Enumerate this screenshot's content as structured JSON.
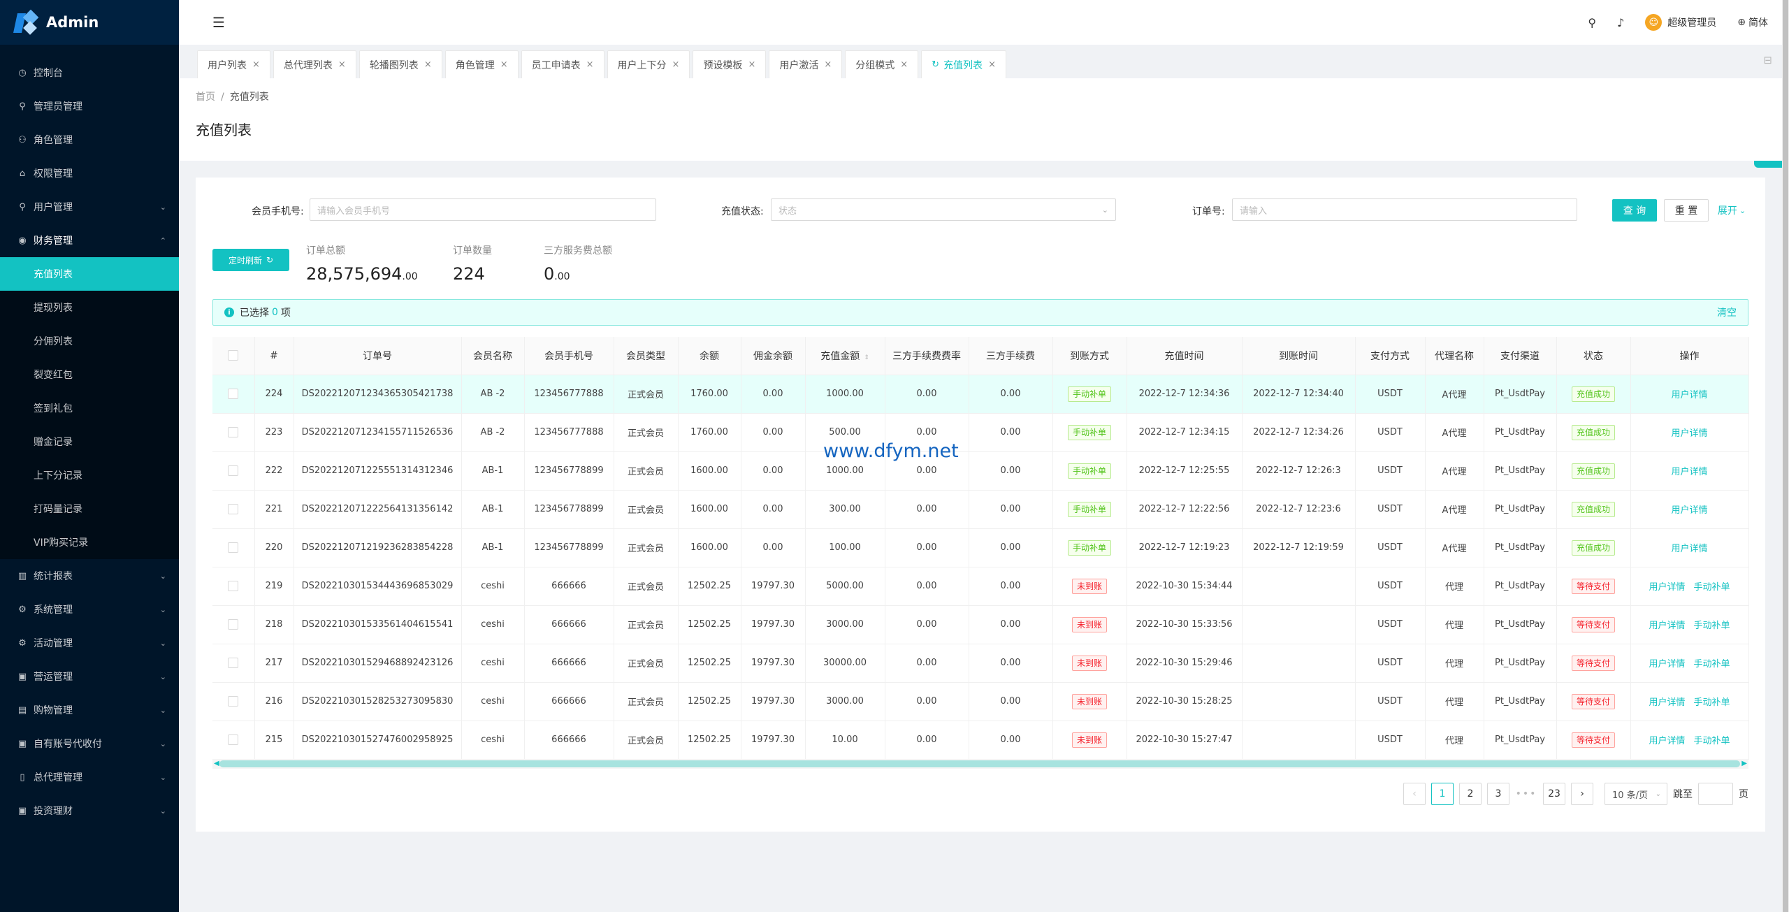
{
  "app": {
    "title": "Admin"
  },
  "sidebar": {
    "items_top": [
      {
        "label": "控制台",
        "icon": "dashboard-icon",
        "glyph": "◷"
      },
      {
        "label": "管理员管理",
        "icon": "user-icon",
        "glyph": "⚲"
      },
      {
        "label": "角色管理",
        "icon": "team-icon",
        "glyph": "⚇"
      },
      {
        "label": "权限管理",
        "icon": "bank-icon",
        "glyph": "⌂"
      },
      {
        "label": "用户管理",
        "icon": "user-icon",
        "glyph": "⚲",
        "arrow": "⌄"
      },
      {
        "label": "财务管理",
        "icon": "money-icon",
        "glyph": "◉",
        "arrow": "⌃"
      }
    ],
    "sub_items": [
      "充值列表",
      "提现列表",
      "分佣列表",
      "裂变红包",
      "签到礼包",
      "赠金记录",
      "上下分记录",
      "打码量记录",
      "VIP购买记录"
    ],
    "items_bottom": [
      {
        "label": "统计报表",
        "icon": "chart-icon",
        "glyph": "▥",
        "arrow": "⌄"
      },
      {
        "label": "系统管理",
        "icon": "setting-icon",
        "glyph": "⚙",
        "arrow": "⌄"
      },
      {
        "label": "活动管理",
        "icon": "setting-icon",
        "glyph": "⚙",
        "arrow": "⌄"
      },
      {
        "label": "营运管理",
        "icon": "calendar-icon",
        "glyph": "▣",
        "arrow": "⌄"
      },
      {
        "label": "购物管理",
        "icon": "shop-icon",
        "glyph": "▤",
        "arrow": "⌄"
      },
      {
        "label": "自有账号代收付",
        "icon": "calendar-icon",
        "glyph": "▣",
        "arrow": "⌄"
      },
      {
        "label": "总代理管理",
        "icon": "file-icon",
        "glyph": "▯",
        "arrow": "⌄"
      },
      {
        "label": "投资理财",
        "icon": "wallet-icon",
        "glyph": "▣",
        "arrow": "⌄"
      }
    ]
  },
  "header": {
    "fold_glyph": "☰",
    "search_glyph": "⚲",
    "bell_glyph": "♪",
    "user_name": "超级管理员",
    "lang": "简体",
    "lang_glyph": "⊕",
    "avatar_glyph": "☺"
  },
  "tabs": [
    {
      "label": "用户列表"
    },
    {
      "label": "总代理列表"
    },
    {
      "label": "轮播图列表"
    },
    {
      "label": "角色管理"
    },
    {
      "label": "员工申请表"
    },
    {
      "label": "用户上下分"
    },
    {
      "label": "预设模板"
    },
    {
      "label": "用户激活"
    },
    {
      "label": "分组模式"
    },
    {
      "label": "充值列表",
      "active": true
    }
  ],
  "tab_close": "×",
  "tab_refresh": "↻",
  "lock_glyph": "⊟",
  "breadcrumb": {
    "home": "首页",
    "sep": "/",
    "current": "充值列表"
  },
  "page_title": "充值列表",
  "search": {
    "phone_label": "会员手机号:",
    "phone_placeholder": "请输入会员手机号",
    "status_label": "充值状态:",
    "status_placeholder": "状态",
    "order_label": "订单号:",
    "order_placeholder": "请输入",
    "query": "查 询",
    "reset": "重 置",
    "expand": "展开",
    "chev": "⌄"
  },
  "stats": {
    "refresh_label": "定时刷新",
    "refresh_glyph": "↻",
    "total_label": "订单总额",
    "total_int": "28,575,694",
    "total_dec": ".00",
    "count_label": "订单数量",
    "count_value": "224",
    "fee_label": "三方服务费总额",
    "fee_int": "0",
    "fee_dec": ".00"
  },
  "alert": {
    "selected_prefix": "已选择",
    "selected_count": "0",
    "selected_suffix": "项",
    "clear": "清空",
    "info_glyph": "i"
  },
  "table": {
    "columns": [
      "#",
      "订单号",
      "会员名称",
      "会员手机号",
      "会员类型",
      "余额",
      "佣金余额",
      "充值金额",
      "三方手续费费率",
      "三方手续费",
      "到账方式",
      "充值时间",
      "到账时间",
      "支付方式",
      "代理名称",
      "支付渠道",
      "状态",
      "操作"
    ],
    "sort_glyph": "⇕",
    "rows": [
      {
        "id": "224",
        "order": "DS20221207123436530542173​8",
        "name": "AB -2",
        "phone": "123456777888",
        "type": "正式会员",
        "balance": "1760.00",
        "comm": "0.00",
        "amount": "1000.00",
        "rate": "0.00",
        "fee": "0.00",
        "method": "手动补单",
        "method_color": "green",
        "time": "2022-12-7 12:34:36",
        "arrive": "2022-12-7 12:34:40",
        "pay": "USDT",
        "agent": "A代理",
        "channel": "Pt_UsdtPay",
        "status": "充值成功",
        "status_color": "green",
        "op1": "用户详情",
        "op2": ""
      },
      {
        "id": "223",
        "order": "DS20221207123415571152653​6",
        "name": "AB -2",
        "phone": "123456777888",
        "type": "正式会员",
        "balance": "1760.00",
        "comm": "0.00",
        "amount": "500.00",
        "rate": "0.00",
        "fee": "0.00",
        "method": "手动补单",
        "method_color": "green",
        "time": "2022-12-7 12:34:15",
        "arrive": "2022-12-7 12:34:26",
        "pay": "USDT",
        "agent": "A代理",
        "channel": "Pt_UsdtPay",
        "status": "充值成功",
        "status_color": "green",
        "op1": "用户详情",
        "op2": ""
      },
      {
        "id": "222",
        "order": "DS20221207122555131431234​6",
        "name": "AB-1",
        "phone": "123456778899",
        "type": "正式会员",
        "balance": "1600.00",
        "comm": "0.00",
        "amount": "1000.00",
        "rate": "0.00",
        "fee": "0.00",
        "method": "手动补单",
        "method_color": "green",
        "time": "2022-12-7 12:25:55",
        "arrive": "2022-12-7 12:26:3",
        "pay": "USDT",
        "agent": "A代理",
        "channel": "Pt_UsdtPay",
        "status": "充值成功",
        "status_color": "green",
        "op1": "用户详情",
        "op2": ""
      },
      {
        "id": "221",
        "order": "DS20221207122256413135614​2",
        "name": "AB-1",
        "phone": "123456778899",
        "type": "正式会员",
        "balance": "1600.00",
        "comm": "0.00",
        "amount": "300.00",
        "rate": "0.00",
        "fee": "0.00",
        "method": "手动补单",
        "method_color": "green",
        "time": "2022-12-7 12:22:56",
        "arrive": "2022-12-7 12:23:6",
        "pay": "USDT",
        "agent": "A代理",
        "channel": "Pt_UsdtPay",
        "status": "充值成功",
        "status_color": "green",
        "op1": "用户详情",
        "op2": ""
      },
      {
        "id": "220",
        "order": "DS20221207121923628385422​8",
        "name": "AB-1",
        "phone": "123456778899",
        "type": "正式会员",
        "balance": "1600.00",
        "comm": "0.00",
        "amount": "100.00",
        "rate": "0.00",
        "fee": "0.00",
        "method": "手动补单",
        "method_color": "green",
        "time": "2022-12-7 12:19:23",
        "arrive": "2022-12-7 12:19:59",
        "pay": "USDT",
        "agent": "A代理",
        "channel": "Pt_UsdtPay",
        "status": "充值成功",
        "status_color": "green",
        "op1": "用户详情",
        "op2": ""
      },
      {
        "id": "219",
        "order": "DS20221030153444369685302​9",
        "name": "ceshi",
        "phone": "666666",
        "type": "正式会员",
        "balance": "12502.25",
        "comm": "19797.30",
        "amount": "5000.00",
        "rate": "0.00",
        "fee": "0.00",
        "method": "未到账",
        "method_color": "red",
        "time": "2022-10-30 15:34:44",
        "arrive": "",
        "pay": "USDT",
        "agent": "代理",
        "channel": "Pt_UsdtPay",
        "status": "等待支付",
        "status_color": "red",
        "op1": "用户详情",
        "op2": "手动补单"
      },
      {
        "id": "218",
        "order": "DS20221030153356140461554​1",
        "name": "ceshi",
        "phone": "666666",
        "type": "正式会员",
        "balance": "12502.25",
        "comm": "19797.30",
        "amount": "3000.00",
        "rate": "0.00",
        "fee": "0.00",
        "method": "未到账",
        "method_color": "red",
        "time": "2022-10-30 15:33:56",
        "arrive": "",
        "pay": "USDT",
        "agent": "代理",
        "channel": "Pt_UsdtPay",
        "status": "等待支付",
        "status_color": "red",
        "op1": "用户详情",
        "op2": "手动补单"
      },
      {
        "id": "217",
        "order": "DS20221030152946889242312​6",
        "name": "ceshi",
        "phone": "666666",
        "type": "正式会员",
        "balance": "12502.25",
        "comm": "19797.30",
        "amount": "30000.00",
        "rate": "0.00",
        "fee": "0.00",
        "method": "未到账",
        "method_color": "red",
        "time": "2022-10-30 15:29:46",
        "arrive": "",
        "pay": "USDT",
        "agent": "代理",
        "channel": "Pt_UsdtPay",
        "status": "等待支付",
        "status_color": "red",
        "op1": "用户详情",
        "op2": "手动补单"
      },
      {
        "id": "216",
        "order": "DS20221030152825327309583​0",
        "name": "ceshi",
        "phone": "666666",
        "type": "正式会员",
        "balance": "12502.25",
        "comm": "19797.30",
        "amount": "3000.00",
        "rate": "0.00",
        "fee": "0.00",
        "method": "未到账",
        "method_color": "red",
        "time": "2022-10-30 15:28:25",
        "arrive": "",
        "pay": "USDT",
        "agent": "代理",
        "channel": "Pt_UsdtPay",
        "status": "等待支付",
        "status_color": "red",
        "op1": "用户详情",
        "op2": "手动补单"
      },
      {
        "id": "215",
        "order": "DS20221030152747600295892​5",
        "name": "ceshi",
        "phone": "666666",
        "type": "正式会员",
        "balance": "12502.25",
        "comm": "19797.30",
        "amount": "10.00",
        "rate": "0.00",
        "fee": "0.00",
        "method": "未到账",
        "method_color": "red",
        "time": "2022-10-30 15:27:47",
        "arrive": "",
        "pay": "USDT",
        "agent": "代理",
        "channel": "Pt_UsdtPay",
        "status": "等待支付",
        "status_color": "red",
        "op1": "用户详情",
        "op2": "手动补单"
      }
    ]
  },
  "scroll_arrows": {
    "left": "◀",
    "right": "▶"
  },
  "pagination": {
    "prev": "‹",
    "next": "›",
    "pages": [
      "1",
      "2",
      "3"
    ],
    "ellipsis": "•••",
    "last": "23",
    "size": "10 条/页",
    "jump_label": "跳至",
    "page_unit": "页"
  },
  "watermark": "www.dfym.net",
  "colors": {
    "accent": "#13c2c2",
    "sidebar": "#001529"
  }
}
